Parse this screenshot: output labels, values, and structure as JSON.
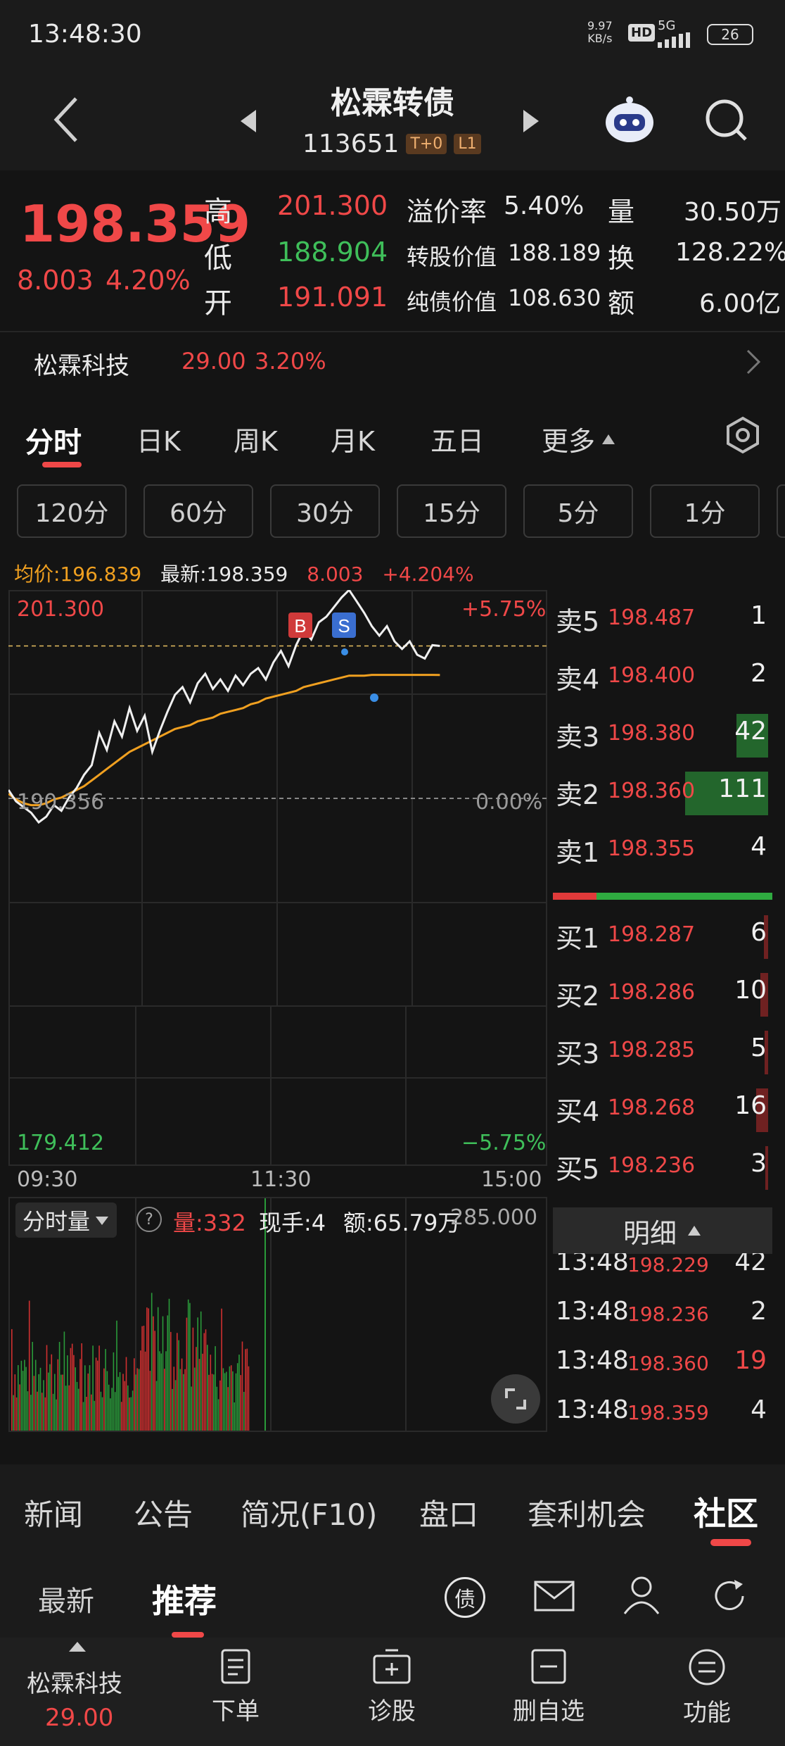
{
  "status_bar": {
    "time": "13:48:30",
    "net_speed_top": "9.97",
    "net_speed_bottom": "KB/s",
    "hd": "HD",
    "network": "5G",
    "battery": "26"
  },
  "header": {
    "title": "松霖转债",
    "code": "113651",
    "badge_t0": "T+0",
    "badge_l1": "L1"
  },
  "quote": {
    "price": "198.359",
    "change": "8.003",
    "change_pct": "4.20%",
    "high_label": "高",
    "high": "201.300",
    "low_label": "低",
    "low": "188.904",
    "open_label": "开",
    "open": "191.091",
    "premium_label": "溢价率",
    "premium": "5.40%",
    "conv_value_label": "转股价值",
    "conv_value": "188.189",
    "bond_value_label": "纯债价值",
    "bond_value": "108.630",
    "volume_label": "量",
    "volume": "30.50万",
    "turnover_label": "换",
    "turnover": "128.22%",
    "amount_label": "额",
    "amount": "6.00亿"
  },
  "underlying": {
    "name": "松霖科技",
    "price": "29.00",
    "change_pct": "3.20%"
  },
  "tabs": [
    "分时",
    "日K",
    "周K",
    "月K",
    "五日",
    "更多"
  ],
  "periods": [
    "120分",
    "60分",
    "30分",
    "15分",
    "5分",
    "1分"
  ],
  "chart_info": {
    "avg_label": "均价:196.839",
    "latest_label": "最新:198.359",
    "change": "8.003",
    "change_pct": "+4.204%"
  },
  "chart_axis": {
    "y_top": "201.300",
    "y_mid": "190.356",
    "y_bottom": "179.412",
    "pct_top": "+5.75%",
    "pct_mid": "0.00%",
    "pct_bottom": "−5.75%",
    "t_start": "09:30",
    "t_mid": "11:30",
    "t_end": "15:00"
  },
  "chart_data": {
    "type": "line",
    "ylim": [
      179.412,
      201.3
    ],
    "series": [
      {
        "values": [
          190.8,
          190.2,
          189.9,
          189.6,
          189.1,
          189.4,
          190.0,
          189.7,
          190.4,
          190.9,
          191.6,
          192.1,
          193.8,
          192.9,
          194.4,
          193.6,
          195.1,
          193.9,
          194.7,
          192.8,
          193.9,
          194.9,
          195.8,
          196.2,
          195.4,
          196.4,
          196.9,
          196.1,
          196.6,
          196.0,
          196.8,
          196.3,
          196.9,
          197.2,
          196.6,
          197.5,
          198.1,
          197.3,
          198.4,
          199.2,
          198.7,
          199.6,
          199.9,
          200.4,
          200.9,
          201.3,
          200.7,
          200.1,
          199.4,
          198.9,
          199.4,
          198.6,
          198.2,
          198.6,
          197.9,
          197.7,
          198.4,
          198.359
        ]
      },
      {
        "values": [
          190.6,
          190.3,
          190.1,
          190.0,
          190.0,
          190.1,
          190.3,
          190.4,
          190.6,
          190.8,
          191.0,
          191.3,
          191.6,
          191.9,
          192.2,
          192.5,
          192.8,
          193.0,
          193.2,
          193.4,
          193.6,
          193.8,
          194.0,
          194.1,
          194.2,
          194.4,
          194.5,
          194.6,
          194.8,
          194.9,
          195.0,
          195.1,
          195.3,
          195.4,
          195.6,
          195.7,
          195.8,
          195.9,
          196.0,
          196.2,
          196.3,
          196.4,
          196.5,
          196.6,
          196.7,
          196.8,
          196.8,
          196.8,
          196.84,
          196.84,
          196.84,
          196.84,
          196.84,
          196.84,
          196.84,
          196.84,
          196.84,
          196.839
        ]
      }
    ]
  },
  "orderbook": {
    "asks": [
      {
        "label": "卖5",
        "price": "198.487",
        "qty": "1",
        "bar": 0
      },
      {
        "label": "卖4",
        "price": "198.400",
        "qty": "2",
        "bar": 0
      },
      {
        "label": "卖3",
        "price": "198.380",
        "qty": "42",
        "bar": 0.38
      },
      {
        "label": "卖2",
        "price": "198.360",
        "qty": "111",
        "bar": 1.0
      },
      {
        "label": "卖1",
        "price": "198.355",
        "qty": "4",
        "bar": 0
      }
    ],
    "bids": [
      {
        "label": "买1",
        "price": "198.287",
        "qty": "6",
        "bar": 0.05
      },
      {
        "label": "买2",
        "price": "198.286",
        "qty": "10",
        "bar": 0.09
      },
      {
        "label": "买3",
        "price": "198.285",
        "qty": "5",
        "bar": 0.04
      },
      {
        "label": "买4",
        "price": "198.268",
        "qty": "16",
        "bar": 0.14
      },
      {
        "label": "买5",
        "price": "198.236",
        "qty": "3",
        "bar": 0.03
      }
    ]
  },
  "volume_info": {
    "selector": "分时量",
    "vol_label": "量:332",
    "hand_label": "现手:4",
    "amount_label": "额:65.79万",
    "scale": "285.000"
  },
  "detail": {
    "header": "明细",
    "rows": [
      {
        "time": "13:48",
        "price": "198.229",
        "qty": "42"
      },
      {
        "time": "13:48",
        "price": "198.236",
        "qty": "2"
      },
      {
        "time": "13:48",
        "price": "198.360",
        "qty": "19"
      },
      {
        "time": "13:48",
        "price": "198.359",
        "qty": "4"
      }
    ]
  },
  "sub_tabs": [
    "新闻",
    "公告",
    "简况(F10)",
    "盘口",
    "套利机会",
    "社区"
  ],
  "feed_tabs": [
    "最新",
    "推荐"
  ],
  "feed_icon_bond": "债",
  "bottom_nav": {
    "stock_name": "松霖科技",
    "stock_price": "29.00",
    "items": [
      "下单",
      "诊股",
      "删自选",
      "功能"
    ]
  }
}
